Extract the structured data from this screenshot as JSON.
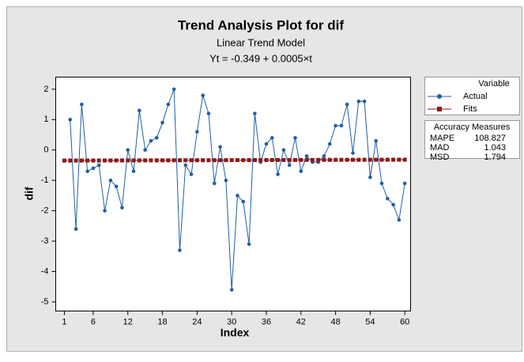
{
  "chart_data": {
    "type": "line",
    "title": "Trend Analysis Plot for dif",
    "subtitle": "Linear Trend Model",
    "equation": "Yt = -0.349 + 0.0005×t",
    "x_label": "Index",
    "y_label": "dif",
    "x": [
      1,
      2,
      3,
      4,
      5,
      6,
      7,
      8,
      9,
      10,
      11,
      12,
      13,
      14,
      15,
      16,
      17,
      18,
      19,
      20,
      21,
      22,
      23,
      24,
      25,
      26,
      27,
      28,
      29,
      30,
      31,
      32,
      33,
      34,
      35,
      36,
      37,
      38,
      39,
      40,
      41,
      42,
      43,
      44,
      45,
      46,
      47,
      48,
      49,
      50,
      51,
      52,
      53,
      54,
      55,
      56,
      57,
      58,
      59,
      60
    ],
    "series": [
      {
        "name": "Actual",
        "color": "#1f5fa8",
        "marker": "circle",
        "values": [
          null,
          1.0,
          -2.6,
          1.5,
          -0.7,
          -0.6,
          -0.5,
          -2.0,
          -1.0,
          -1.2,
          -1.9,
          0.0,
          -0.7,
          1.3,
          0.0,
          0.3,
          0.4,
          0.9,
          1.5,
          2.0,
          -3.3,
          -0.5,
          -0.8,
          0.6,
          1.8,
          1.2,
          -1.1,
          0.1,
          -1.0,
          -4.6,
          -1.5,
          -1.7,
          -3.1,
          1.2,
          -0.4,
          0.2,
          0.4,
          -0.8,
          0.0,
          -0.5,
          0.4,
          -0.7,
          -0.2,
          -0.4,
          -0.4,
          -0.2,
          0.2,
          0.8,
          0.8,
          1.5,
          -0.1,
          1.6,
          1.6,
          -0.9,
          0.3,
          -1.1,
          -1.6,
          -1.8,
          -2.3,
          -1.1
        ]
      },
      {
        "name": "Fits",
        "color": "#8b1a1a",
        "marker": "square",
        "values": [
          -0.3485,
          -0.348,
          -0.3475,
          -0.347,
          -0.3465,
          -0.346,
          -0.3455,
          -0.345,
          -0.3445,
          -0.344,
          -0.3435,
          -0.343,
          -0.3425,
          -0.342,
          -0.3415,
          -0.341,
          -0.3405,
          -0.34,
          -0.3395,
          -0.339,
          -0.3385,
          -0.338,
          -0.3375,
          -0.337,
          -0.3365,
          -0.336,
          -0.3355,
          -0.335,
          -0.3345,
          -0.334,
          -0.3335,
          -0.333,
          -0.3325,
          -0.332,
          -0.3315,
          -0.331,
          -0.3305,
          -0.33,
          -0.3295,
          -0.329,
          -0.3285,
          -0.328,
          -0.3275,
          -0.327,
          -0.3265,
          -0.326,
          -0.3255,
          -0.325,
          -0.3245,
          -0.324,
          -0.3235,
          -0.323,
          -0.3225,
          -0.322,
          -0.3215,
          -0.321,
          -0.3205,
          -0.32,
          -0.3195,
          -0.319
        ]
      }
    ],
    "xlim": [
      -0.5,
      61
    ],
    "xticks": [
      1,
      6,
      12,
      18,
      24,
      30,
      36,
      42,
      48,
      54,
      60
    ],
    "ylim": [
      -5.3,
      2.4
    ],
    "yticks": [
      -5,
      -4,
      -3,
      -2,
      -1,
      0,
      1,
      2
    ],
    "grid": false,
    "legend_title": "Variable",
    "legend_position": "right",
    "accuracy_measures": {
      "title": "Accuracy Measures",
      "rows": [
        {
          "label": "MAPE",
          "value": 108.827
        },
        {
          "label": "MAD",
          "value": 1.043
        },
        {
          "label": "MSD",
          "value": 1.794
        }
      ]
    }
  }
}
